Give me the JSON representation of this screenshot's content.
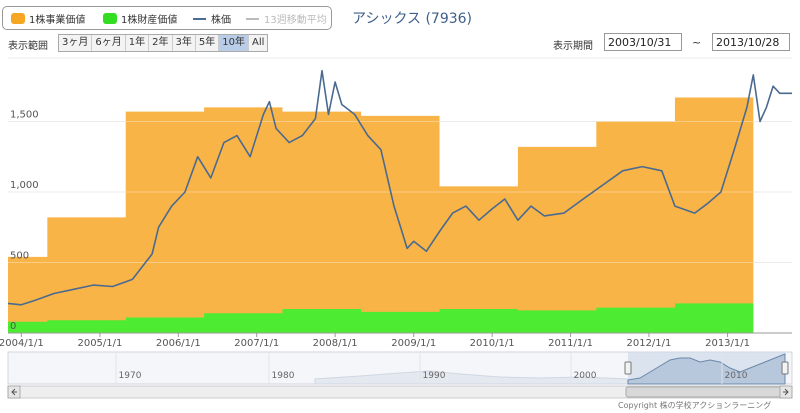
{
  "header": {
    "title": "アシックス (7936)",
    "range_label": "表示範囲",
    "range_buttons": [
      {
        "label": "3ヶ月",
        "active": false
      },
      {
        "label": "6ヶ月",
        "active": false
      },
      {
        "label": "1年",
        "active": false
      },
      {
        "label": "2年",
        "active": false
      },
      {
        "label": "3年",
        "active": false
      },
      {
        "label": "5年",
        "active": false
      },
      {
        "label": "10年",
        "active": true
      },
      {
        "label": "All",
        "active": false
      }
    ],
    "period_label": "表示期間",
    "date_from": "2003/10/31",
    "tilde": "~",
    "date_to": "2013/10/28"
  },
  "legend": [
    {
      "label": "1株事業価値",
      "color": "#f5a623",
      "kind": "box"
    },
    {
      "label": "1株財産価値",
      "color": "#33dd22",
      "kind": "box"
    },
    {
      "label": "株価",
      "color": "#4a6d96",
      "kind": "line"
    },
    {
      "label": "13週移動平均",
      "color": "#bbbbbb",
      "kind": "line"
    }
  ],
  "colors": {
    "business_fill": "#f9b03d",
    "asset_fill": "#44ee33",
    "price_line": "#4a6a90",
    "grid": "#e0e0e0",
    "navigator_fill": "#b8c8dc",
    "navigator_line": "#6a88aa"
  },
  "copyright": "Copyright 株の学校アクションラーニング",
  "navigator": {
    "ticks": [
      "1970",
      "1980",
      "1990",
      "2000",
      "2010"
    ]
  },
  "chart_data": {
    "type": "area",
    "x_range": [
      "2003/10/31",
      "2013/10/28"
    ],
    "ylim": [
      0,
      1950
    ],
    "y_ticks": [
      0,
      500,
      1000,
      1500
    ],
    "y_tick_labels": [
      "0",
      "500",
      "1,000",
      "1,500"
    ],
    "x_tick_labels": [
      "2004/1/1",
      "2005/1/1",
      "2006/1/1",
      "2007/1/1",
      "2008/1/1",
      "2009/1/1",
      "2010/1/1",
      "2011/1/1",
      "2012/1/1",
      "2013/1/1"
    ],
    "grid": true,
    "legend_position": "top-left",
    "series": [
      {
        "name": "1株事業価値",
        "kind": "step",
        "color": "#f9b03d",
        "points": [
          [
            "2003/10/31",
            540
          ],
          [
            "2004/5/1",
            820
          ],
          [
            "2005/5/1",
            1570
          ],
          [
            "2006/5/1",
            1600
          ],
          [
            "2007/5/1",
            1570
          ],
          [
            "2008/5/1",
            1540
          ],
          [
            "2009/5/1",
            1040
          ],
          [
            "2010/5/1",
            1320
          ],
          [
            "2011/5/1",
            1500
          ],
          [
            "2012/5/1",
            1670
          ],
          [
            "2013/5/1",
            1670
          ]
        ],
        "end": "2013/5/1"
      },
      {
        "name": "1株財産価値",
        "kind": "step",
        "color": "#44ee33",
        "points": [
          [
            "2003/10/31",
            80
          ],
          [
            "2004/5/1",
            90
          ],
          [
            "2005/5/1",
            110
          ],
          [
            "2006/5/1",
            140
          ],
          [
            "2007/5/1",
            170
          ],
          [
            "2008/5/1",
            150
          ],
          [
            "2009/5/1",
            170
          ],
          [
            "2010/5/1",
            160
          ],
          [
            "2011/5/1",
            180
          ],
          [
            "2012/5/1",
            210
          ],
          [
            "2013/5/1",
            210
          ]
        ],
        "end": "2013/5/1"
      },
      {
        "name": "株価",
        "kind": "line",
        "color": "#4a6a90",
        "points": [
          [
            "2003/10/31",
            210
          ],
          [
            "2004/1/1",
            200
          ],
          [
            "2004/3/1",
            230
          ],
          [
            "2004/6/1",
            280
          ],
          [
            "2004/9/1",
            310
          ],
          [
            "2004/12/1",
            340
          ],
          [
            "2005/3/1",
            330
          ],
          [
            "2005/6/1",
            380
          ],
          [
            "2005/9/1",
            560
          ],
          [
            "2005/10/1",
            750
          ],
          [
            "2005/12/1",
            900
          ],
          [
            "2006/2/1",
            1000
          ],
          [
            "2006/4/1",
            1250
          ],
          [
            "2006/6/1",
            1100
          ],
          [
            "2006/8/1",
            1350
          ],
          [
            "2006/10/1",
            1400
          ],
          [
            "2006/12/1",
            1250
          ],
          [
            "2007/2/1",
            1550
          ],
          [
            "2007/3/1",
            1640
          ],
          [
            "2007/4/1",
            1450
          ],
          [
            "2007/6/1",
            1350
          ],
          [
            "2007/8/1",
            1400
          ],
          [
            "2007/10/1",
            1520
          ],
          [
            "2007/11/1",
            1860
          ],
          [
            "2007/12/1",
            1550
          ],
          [
            "2008/1/1",
            1780
          ],
          [
            "2008/2/1",
            1620
          ],
          [
            "2008/4/1",
            1550
          ],
          [
            "2008/6/1",
            1400
          ],
          [
            "2008/8/1",
            1300
          ],
          [
            "2008/10/1",
            900
          ],
          [
            "2008/11/1",
            750
          ],
          [
            "2008/12/1",
            600
          ],
          [
            "2009/1/1",
            650
          ],
          [
            "2009/3/1",
            580
          ],
          [
            "2009/5/1",
            720
          ],
          [
            "2009/7/1",
            850
          ],
          [
            "2009/9/1",
            900
          ],
          [
            "2009/11/1",
            800
          ],
          [
            "2010/1/1",
            880
          ],
          [
            "2010/3/1",
            950
          ],
          [
            "2010/5/1",
            800
          ],
          [
            "2010/7/1",
            900
          ],
          [
            "2010/9/1",
            830
          ],
          [
            "2010/12/1",
            850
          ],
          [
            "2011/3/1",
            950
          ],
          [
            "2011/6/1",
            1050
          ],
          [
            "2011/9/1",
            1150
          ],
          [
            "2011/12/1",
            1180
          ],
          [
            "2012/3/1",
            1150
          ],
          [
            "2012/5/1",
            900
          ],
          [
            "2012/8/1",
            850
          ],
          [
            "2012/10/1",
            920
          ],
          [
            "2012/12/1",
            1000
          ],
          [
            "2013/2/1",
            1300
          ],
          [
            "2013/4/1",
            1600
          ],
          [
            "2013/5/1",
            1830
          ],
          [
            "2013/6/1",
            1500
          ],
          [
            "2013/7/1",
            1600
          ],
          [
            "2013/8/1",
            1750
          ],
          [
            "2013/9/1",
            1700
          ],
          [
            "2013/10/28",
            1700
          ]
        ]
      }
    ]
  }
}
